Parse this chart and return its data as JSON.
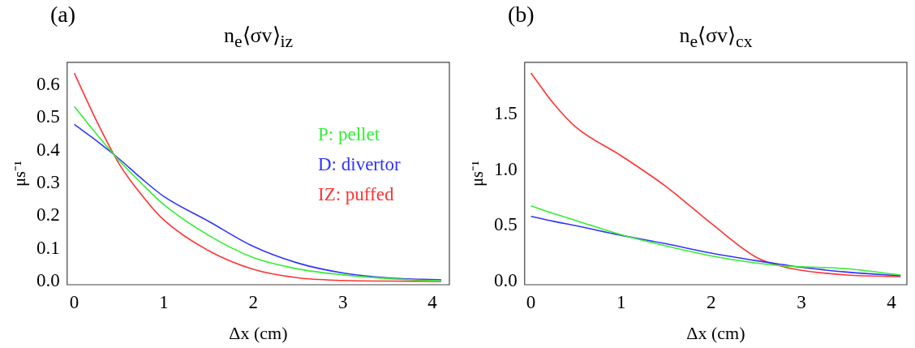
{
  "chart_data": [
    {
      "type": "line",
      "title": "n$_{e}$⟨σv⟩$_{iz}$",
      "xlabel": "Δx (cm)",
      "ylabel": "μs⁻¹",
      "annotations": [
        "(a)"
      ],
      "legend": "top right",
      "grid": false,
      "marker": "none",
      "x": [
        0,
        0.25,
        0.5,
        0.75,
        1,
        1.5,
        2,
        2.5,
        3,
        3.5,
        4.1
      ],
      "xlim": [
        -0.08,
        4.19
      ],
      "xticks": [
        0,
        1,
        2,
        3,
        4
      ],
      "ylim": [
        -0.01,
        0.67
      ],
      "yticks": [
        {
          "value": 0,
          "label": "0.0"
        },
        {
          "value": 0.1,
          "label": "0.1"
        },
        {
          "value": 0.2,
          "label": "0.2"
        },
        {
          "value": 0.3,
          "label": "0.3"
        },
        {
          "value": 0.4,
          "label": "0.4"
        },
        {
          "value": 0.5,
          "label": "0.5"
        },
        {
          "value": 0.6,
          "label": "0.6"
        }
      ],
      "series": [
        {
          "name": "P: pellet",
          "color": "#33ee33",
          "values": [
            0.535,
            0.45,
            0.37,
            0.3,
            0.235,
            0.141,
            0.073,
            0.038,
            0.02,
            0.009,
            0.001
          ]
        },
        {
          "name": "D: divertor",
          "color": "#3333ff",
          "values": [
            0.48,
            0.43,
            0.375,
            0.315,
            0.26,
            0.184,
            0.107,
            0.056,
            0.026,
            0.011,
            0.005
          ]
        },
        {
          "name": "IZ: puffed",
          "color": "#ff3333",
          "values": [
            0.637,
            0.49,
            0.36,
            0.265,
            0.188,
            0.094,
            0.037,
            0.011,
            0.003,
            0.001,
            0
          ]
        }
      ]
    },
    {
      "type": "line",
      "title": "n$_{e}$⟨σv⟩$_{cx}$",
      "xlabel": "Δx (cm)",
      "ylabel": "μs⁻¹",
      "annotations": [
        "(b)"
      ],
      "grid": false,
      "marker": "none",
      "x": [
        0,
        0.25,
        0.5,
        1,
        1.5,
        2,
        2.5,
        2.8,
        3,
        3.5,
        4.1
      ],
      "xlim": [
        -0.07,
        4.17
      ],
      "xticks": [
        0,
        1,
        2,
        3,
        4
      ],
      "ylim": [
        -0.03,
        1.97
      ],
      "yticks": [
        {
          "value": 0,
          "label": "0.0"
        },
        {
          "value": 0.5,
          "label": "0.5"
        },
        {
          "value": 1,
          "label": "1.0"
        },
        {
          "value": 1.5,
          "label": "1.5"
        }
      ],
      "series": [
        {
          "color": "#33ee33",
          "values": [
            0.679,
            0.61,
            0.547,
            0.42,
            0.318,
            0.229,
            0.165,
            0.14,
            0.132,
            0.114,
            0.058
          ]
        },
        {
          "color": "#3333ff",
          "values": [
            0.585,
            0.54,
            0.5,
            0.414,
            0.338,
            0.254,
            0.186,
            0.15,
            0.127,
            0.084,
            0.051
          ]
        },
        {
          "color": "#ff3333",
          "values": [
            1.874,
            1.6,
            1.386,
            1.13,
            0.852,
            0.521,
            0.216,
            0.132,
            0.1,
            0.058,
            0.043
          ]
        }
      ]
    }
  ]
}
